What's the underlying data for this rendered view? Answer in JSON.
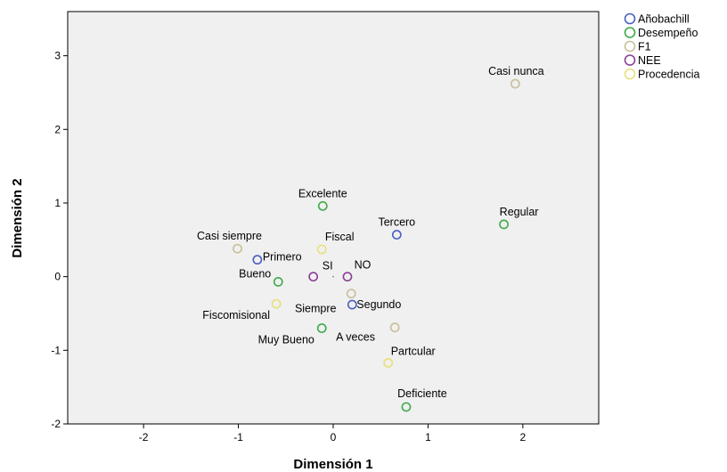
{
  "chart_data": {
    "type": "scatter",
    "title": "",
    "xlabel": "Dimensión 1",
    "ylabel": "Dimensión 2",
    "xlim": [
      -2.8,
      2.8
    ],
    "ylim": [
      -2,
      3.6
    ],
    "xticks": [
      -2,
      -1,
      0,
      1,
      2
    ],
    "yticks": [
      -2,
      -1,
      0,
      1,
      2,
      3
    ],
    "grid": false,
    "legend_position": "top-right, outside plot",
    "background": "#f0f0f0",
    "series": [
      {
        "name": "Añobachill",
        "color": "#4a5fc1",
        "points": [
          {
            "label": "Primero",
            "x": -0.8,
            "y": 0.23
          },
          {
            "label": "Segundo",
            "x": 0.2,
            "y": -0.38
          },
          {
            "label": "Tercero",
            "x": 0.67,
            "y": 0.57
          }
        ]
      },
      {
        "name": "Desempeño",
        "color": "#3eaa4a",
        "points": [
          {
            "label": "Excelente",
            "x": -0.11,
            "y": 0.96
          },
          {
            "label": "Bueno",
            "x": -0.58,
            "y": -0.07
          },
          {
            "label": "Muy Bueno",
            "x": -0.12,
            "y": -0.7
          },
          {
            "label": "Regular",
            "x": 1.8,
            "y": 0.71
          },
          {
            "label": "Deficiente",
            "x": 0.77,
            "y": -1.77
          }
        ]
      },
      {
        "name": "F1",
        "color": "#c8bf9a",
        "points": [
          {
            "label": "Casi nunca",
            "x": 1.92,
            "y": 2.62
          },
          {
            "label": "Casi siempre",
            "x": -1.01,
            "y": 0.38
          },
          {
            "label": "Siempre",
            "x": 0.19,
            "y": -0.23
          },
          {
            "label": "A veces",
            "x": 0.65,
            "y": -0.69
          }
        ]
      },
      {
        "name": "NEE",
        "color": "#8a3e96",
        "points": [
          {
            "label": "SI",
            "x": -0.21,
            "y": 0.0
          },
          {
            "label": "NO",
            "x": 0.15,
            "y": 0.0
          }
        ]
      },
      {
        "name": "Procedencia",
        "color": "#e8e07a",
        "points": [
          {
            "label": "Fiscal",
            "x": -0.12,
            "y": 0.37
          },
          {
            "label": "Fiscomisional",
            "x": -0.6,
            "y": -0.37
          },
          {
            "label": "Partcular",
            "x": 0.58,
            "y": -1.17
          }
        ]
      }
    ]
  }
}
